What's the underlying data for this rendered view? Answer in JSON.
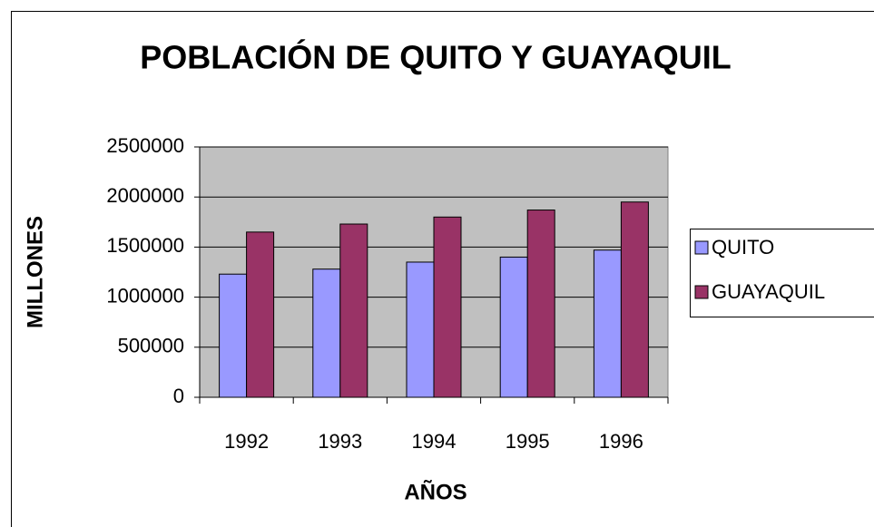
{
  "chart_data": {
    "type": "bar",
    "title": "POBLACIÓN DE QUITO Y GUAYAQUIL",
    "x_label": "AÑOS",
    "y_label": "MILLONES",
    "categories": [
      "1992",
      "1993",
      "1994",
      "1995",
      "1996"
    ],
    "series": [
      {
        "name": "QUITO",
        "color": "#9999ff",
        "values": [
          1230000,
          1280000,
          1350000,
          1400000,
          1470000
        ]
      },
      {
        "name": "GUAYAQUIL",
        "color": "#993366",
        "values": [
          1650000,
          1730000,
          1800000,
          1870000,
          1950000
        ]
      }
    ],
    "ylim": [
      0,
      2500000
    ],
    "yticks": [
      0,
      500000,
      1000000,
      1500000,
      2000000,
      2500000
    ],
    "grid": true,
    "legend": "right"
  }
}
